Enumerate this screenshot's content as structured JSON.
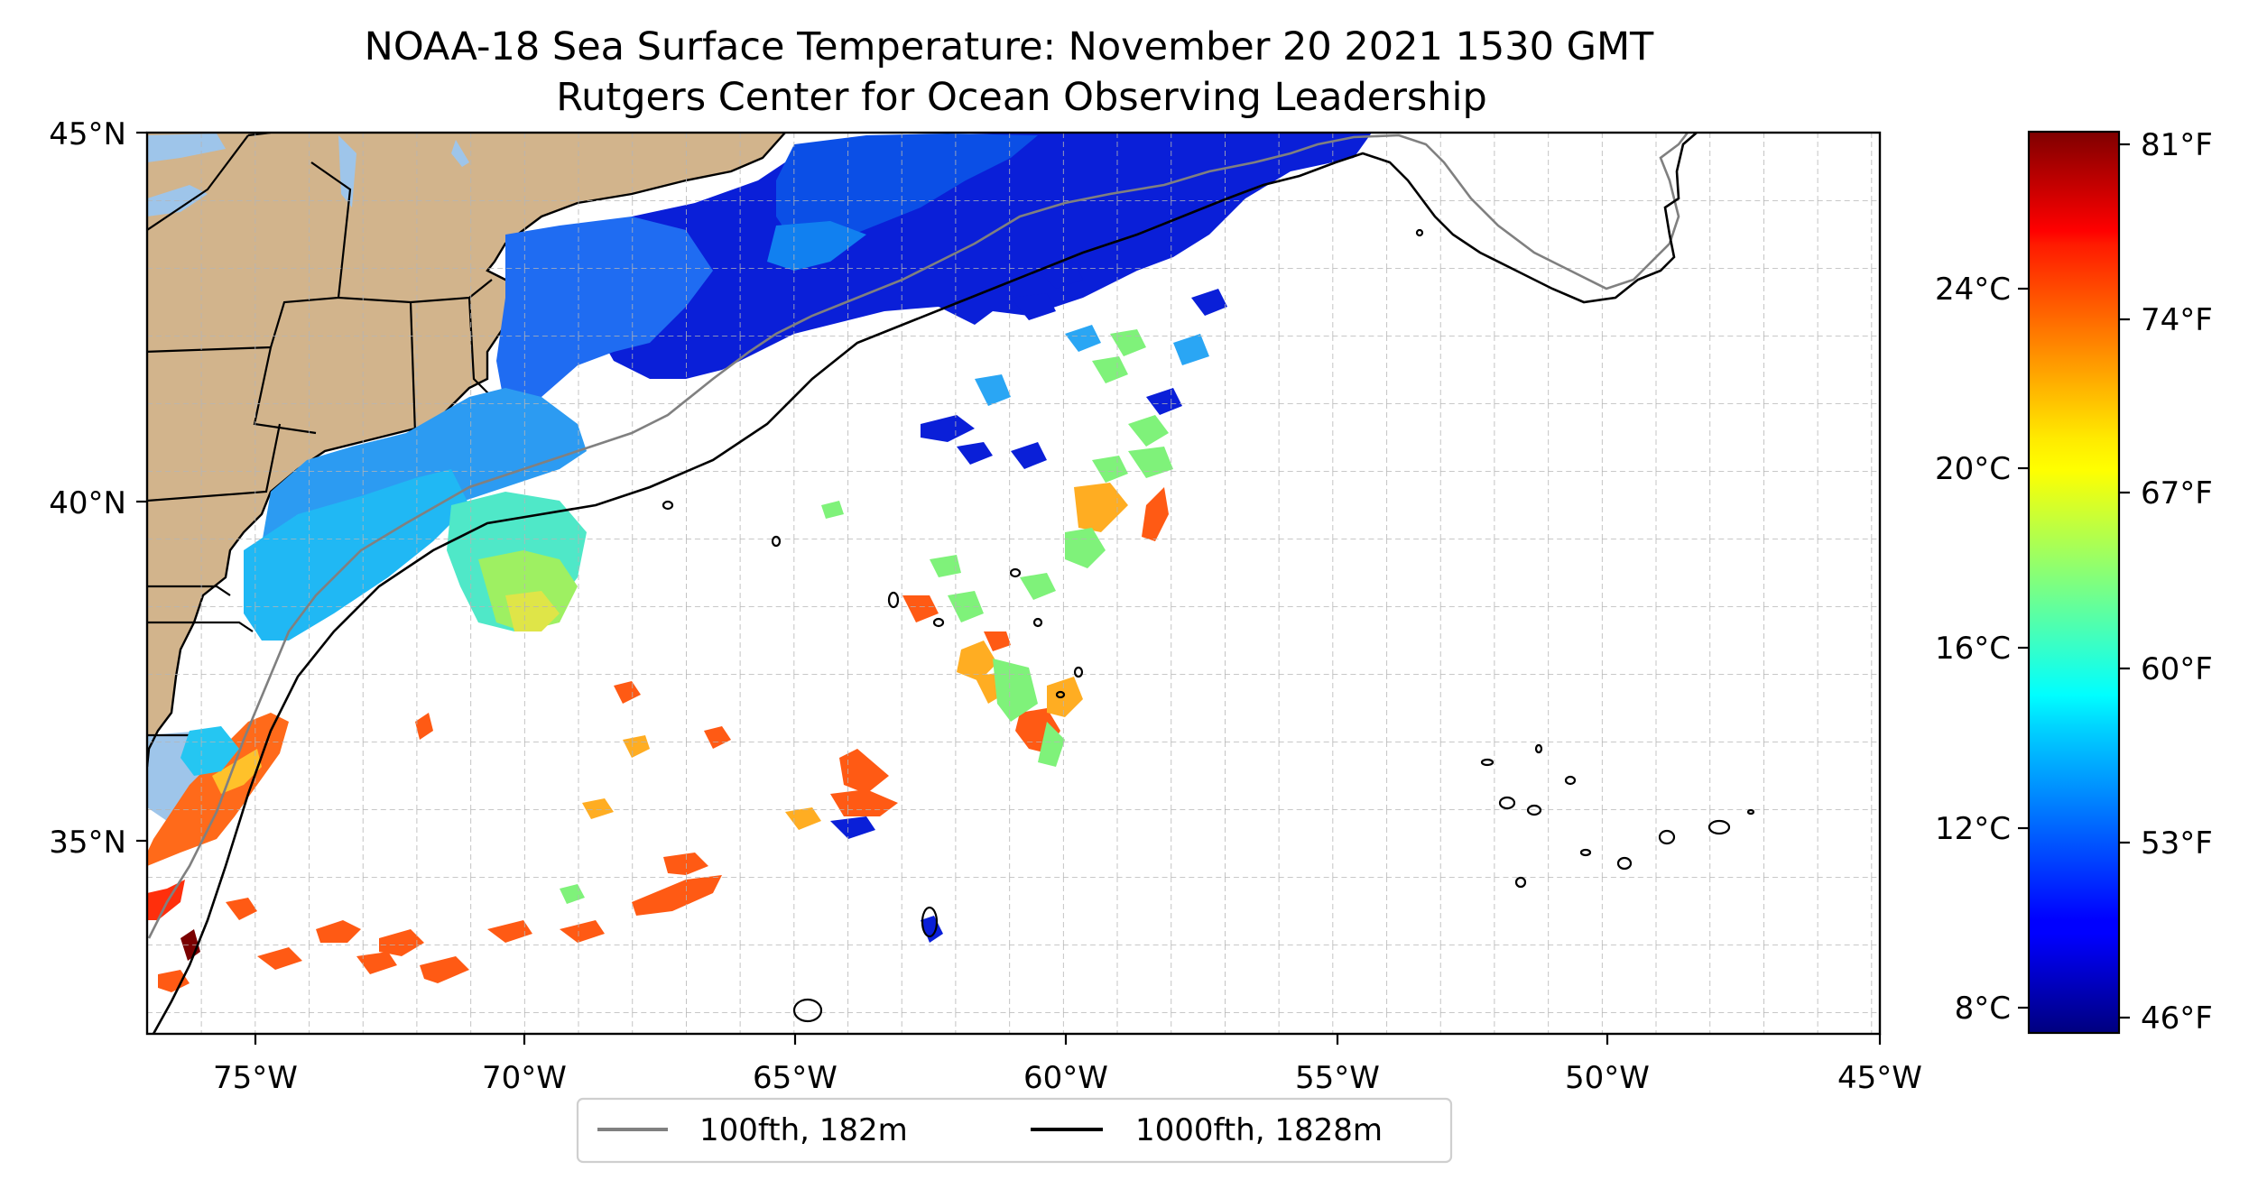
{
  "title": "NOAA-18 Sea Surface Temperature: November 20 2021 1530 GMT",
  "subtitle": "Rutgers Center for Ocean Observing Leadership",
  "map": {
    "lon_range": [
      -77,
      -45
    ],
    "lat_range": [
      31.7,
      45
    ],
    "lon_ticks": [
      {
        "value": -75,
        "label": "75°W"
      },
      {
        "value": -70,
        "label": "70°W"
      },
      {
        "value": -65,
        "label": "65°W"
      },
      {
        "value": -60,
        "label": "60°W"
      },
      {
        "value": -55,
        "label": "55°W"
      },
      {
        "value": -50,
        "label": "50°W"
      },
      {
        "value": -45,
        "label": "45°W"
      }
    ],
    "lat_ticks": [
      {
        "value": 45,
        "label": "45°N"
      },
      {
        "value": 40,
        "label": "40°N"
      },
      {
        "value": 35,
        "label": "35°N"
      }
    ],
    "grid": "dashed, every 1°",
    "land_color": "#d2b48c",
    "ocean_color": "#ffffff",
    "lake_color": "#9ec5ea"
  },
  "colorbar": {
    "colormap": "jet",
    "celsius_ticks": [
      "24°C",
      "20°C",
      "16°C",
      "12°C",
      "8°C"
    ],
    "fahrenheit_ticks": [
      "81°F",
      "74°F",
      "67°F",
      "60°F",
      "53°F",
      "46°F"
    ]
  },
  "legend": {
    "items": [
      {
        "label": "100fth, 182m",
        "color": "#808080"
      },
      {
        "label": "1000fth, 1828m",
        "color": "#000000"
      }
    ]
  }
}
